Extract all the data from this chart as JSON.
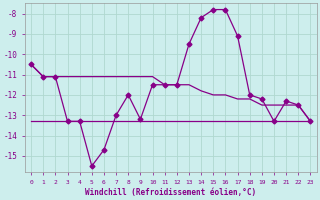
{
  "xlabel": "Windchill (Refroidissement éolien,°C)",
  "background_color": "#cdeeed",
  "grid_color": "#b0d8d0",
  "line_color": "#880088",
  "x_hours": [
    0,
    1,
    2,
    3,
    4,
    5,
    6,
    7,
    8,
    9,
    10,
    11,
    12,
    13,
    14,
    15,
    16,
    17,
    18,
    19,
    20,
    21,
    22,
    23
  ],
  "y_main": [
    -10.5,
    -11.1,
    -11.1,
    -13.3,
    -13.3,
    -15.5,
    -14.7,
    -13.0,
    -12.0,
    -13.2,
    -11.5,
    -11.5,
    -11.5,
    -9.5,
    -8.2,
    -7.8,
    -7.8,
    -9.1,
    -12.0,
    -12.2,
    -13.3,
    -12.3,
    -12.5,
    -13.3
  ],
  "y_upper": [
    -10.5,
    -11.1,
    -11.1,
    -11.1,
    -11.1,
    -11.1,
    -11.1,
    -11.1,
    -11.1,
    -11.1,
    -11.1,
    -11.5,
    -11.5,
    -11.5,
    -11.8,
    -12.0,
    -12.0,
    -12.2,
    -12.2,
    -12.5,
    -12.5,
    -12.5,
    -12.5,
    -13.3
  ],
  "y_lower": [
    -13.3,
    -13.3,
    -13.3,
    -13.3,
    -13.3,
    -13.3,
    -13.3,
    -13.3,
    -13.3,
    -13.3,
    -13.3,
    -13.3,
    -13.3,
    -13.3,
    -13.3,
    -13.3,
    -13.3,
    -13.3,
    -13.3,
    -13.3,
    -13.3,
    -13.3,
    -13.3,
    -13.3
  ],
  "ylim": [
    -15.8,
    -7.5
  ],
  "yticks": [
    -15,
    -14,
    -13,
    -12,
    -11,
    -10,
    -9,
    -8
  ],
  "marker": "D",
  "marker_size": 2.5,
  "line_width": 0.9
}
